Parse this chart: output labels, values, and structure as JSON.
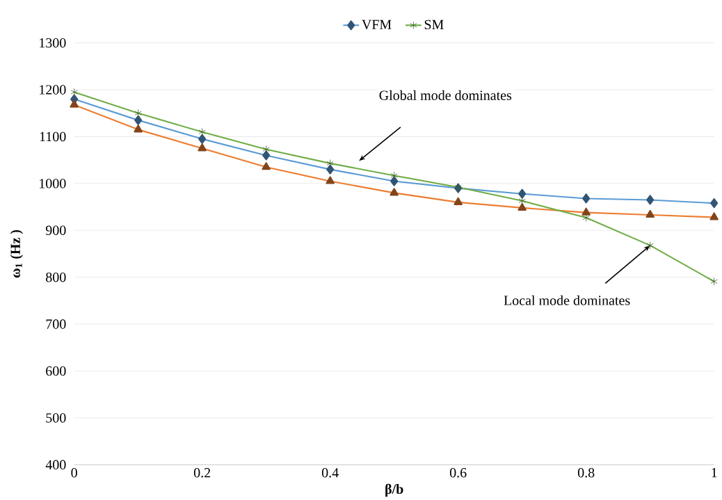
{
  "chart_data": {
    "type": "line",
    "xlabel": "β/b",
    "ylabel": "ω$_{1}$ (Hz )",
    "x": [
      0,
      0.1,
      0.2,
      0.3,
      0.4,
      0.5,
      0.6,
      0.7,
      0.8,
      0.9,
      1
    ],
    "series": [
      {
        "name": "VFM",
        "color": "#5b9bd5",
        "marker": "diamond",
        "values": [
          1180,
          1135,
          1095,
          1060,
          1030,
          1005,
          990,
          978,
          968,
          965,
          958
        ]
      },
      {
        "color": "#ed7d31",
        "marker": "triangle",
        "values": [
          1168,
          1115,
          1075,
          1035,
          1005,
          980,
          960,
          948,
          938,
          933,
          928
        ]
      },
      {
        "name": "SM",
        "color": "#70ad47",
        "marker": "cross",
        "values": [
          1195,
          1150,
          1110,
          1073,
          1043,
          1017,
          992,
          963,
          927,
          868,
          791
        ]
      }
    ],
    "xlim": [
      0,
      1
    ],
    "ylim": [
      400,
      1300
    ],
    "xticks": [
      0,
      0.2,
      0.4,
      0.6,
      0.8,
      1
    ],
    "yticks": [
      400,
      500,
      600,
      700,
      800,
      900,
      1000,
      1100,
      1200,
      1300
    ],
    "grid": "y",
    "legend": "top",
    "annotations": [
      "Global mode dominates",
      {
        "text": "Local mode dominates",
        "x": 0.9,
        "y": 868
      }
    ]
  }
}
